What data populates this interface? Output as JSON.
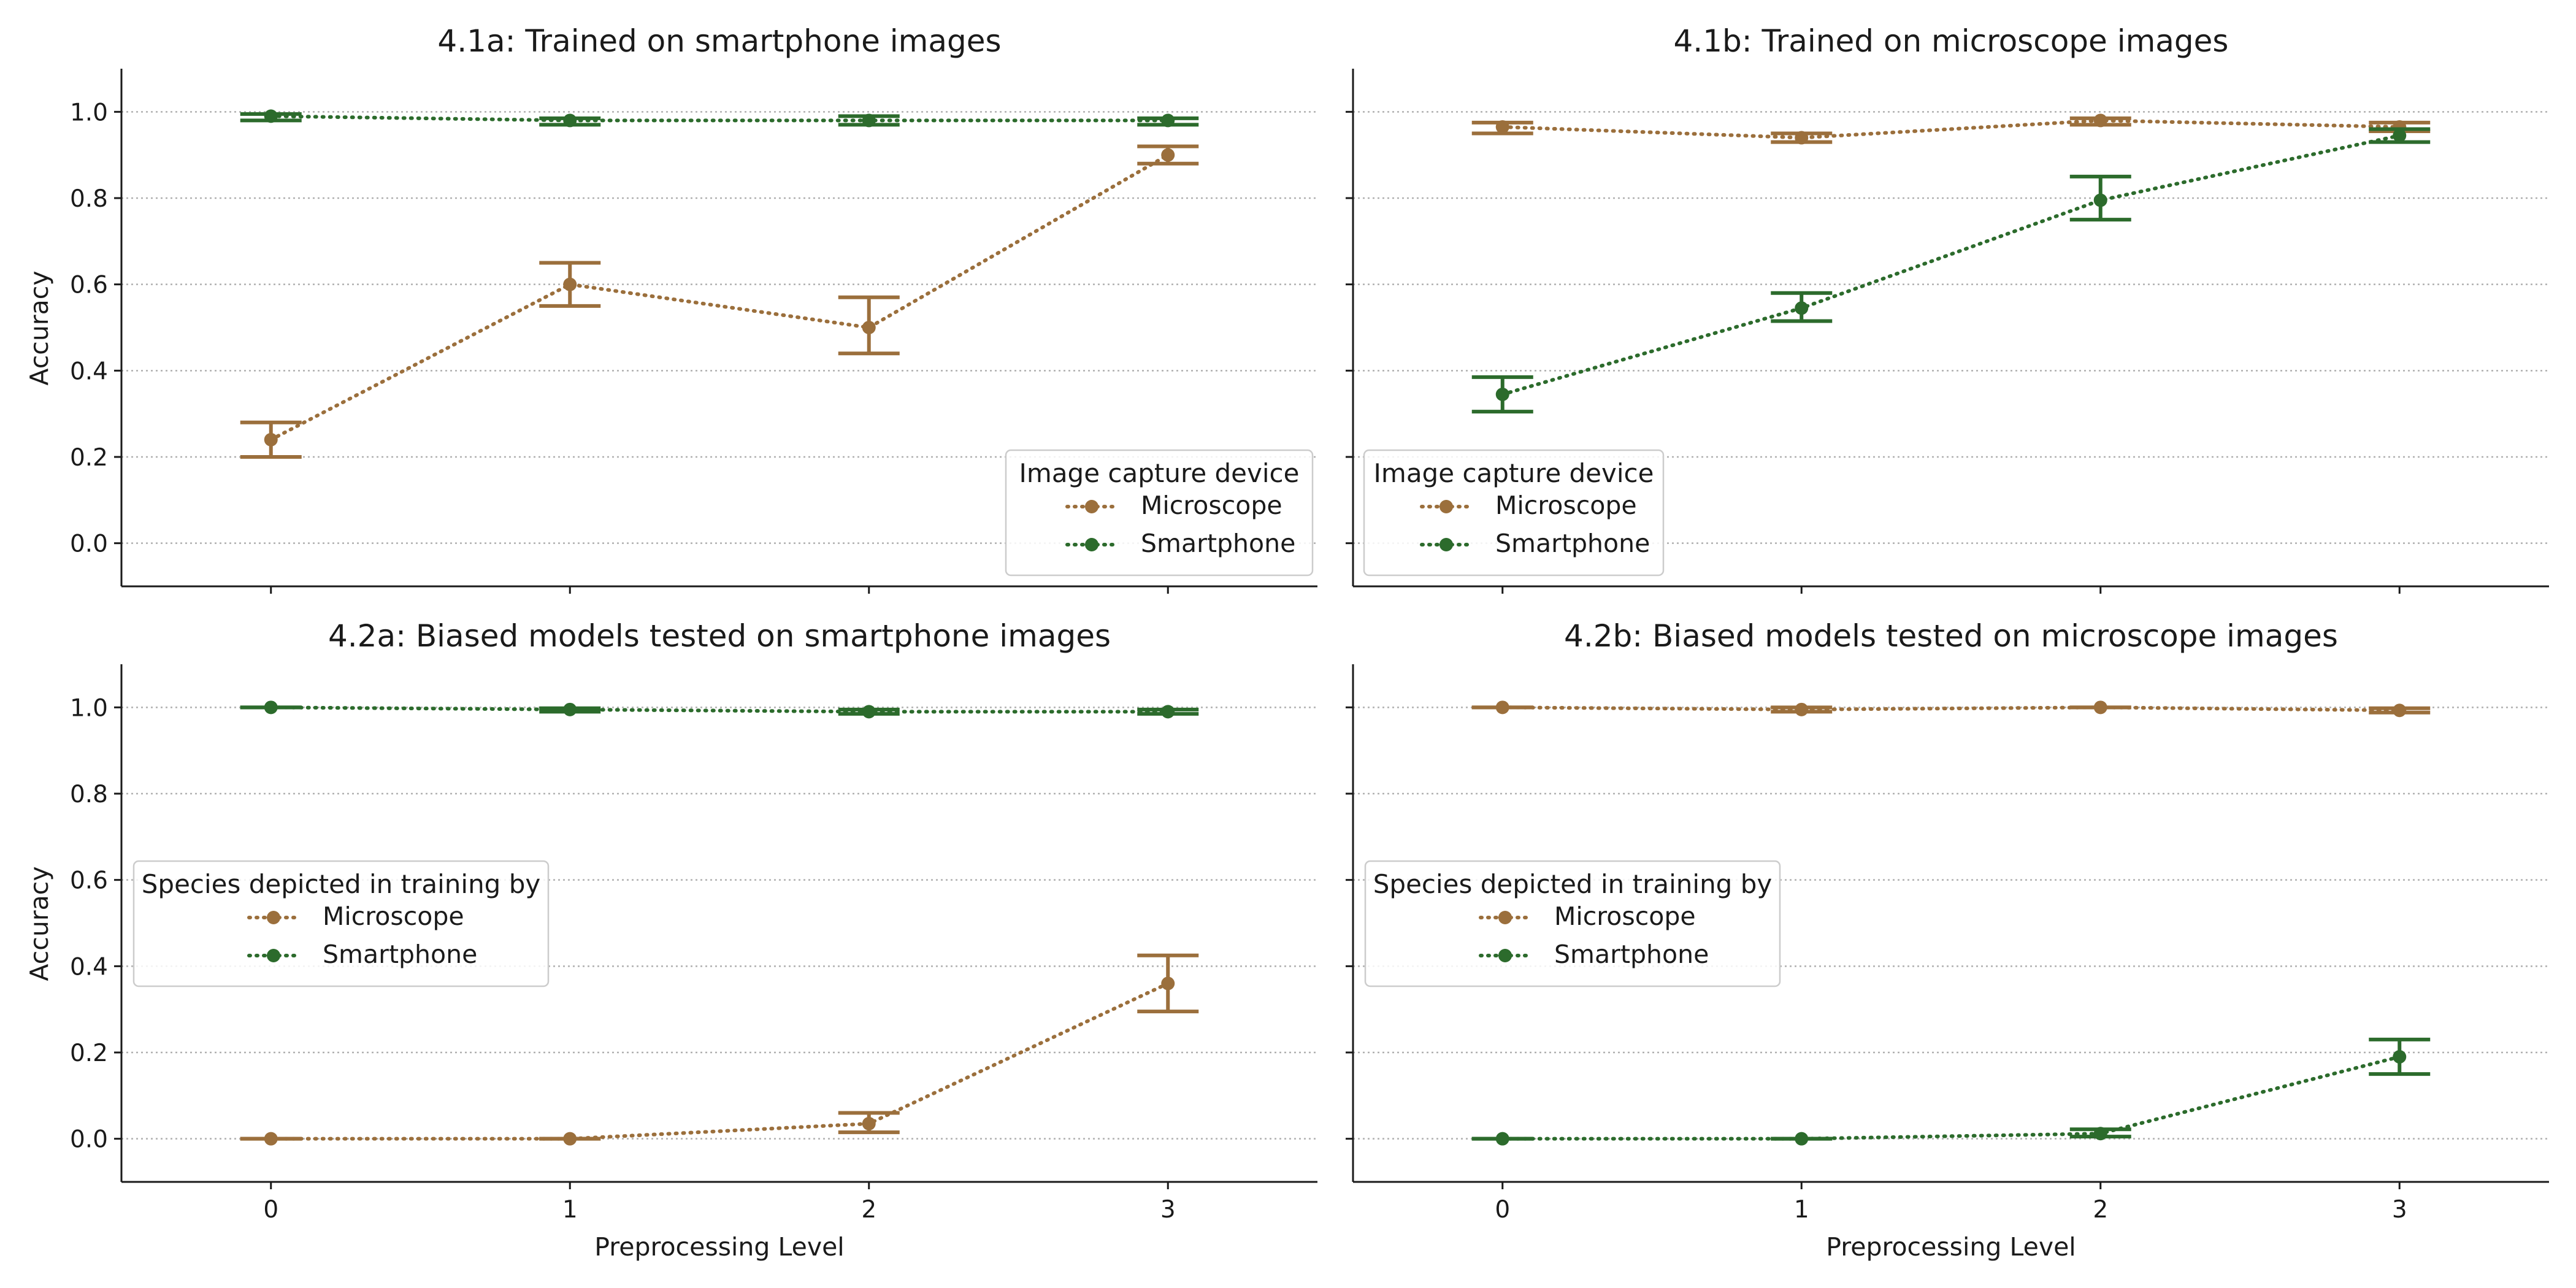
{
  "colors": {
    "microscope": "#9b6f3c",
    "smartphone": "#2c6b2c",
    "grid": "#b0b0b0",
    "axis": "#1a1a1a"
  },
  "chart_data": [
    {
      "type": "line",
      "title": "4.1a: Trained on smartphone images",
      "xlabel": "",
      "ylabel": "Accuracy",
      "x": [
        0,
        1,
        2,
        3
      ],
      "ylim": [
        -0.1,
        1.1
      ],
      "yticks": [
        "0.0",
        "0.2",
        "0.4",
        "0.6",
        "0.8",
        "1.0"
      ],
      "xticks": [
        "0",
        "1",
        "2",
        "3"
      ],
      "grid": "y-dotted",
      "legend": {
        "title": "Image capture device",
        "placement": "lower-right"
      },
      "series": [
        {
          "name": "Microscope",
          "color": "microscope",
          "values": [
            0.24,
            0.6,
            0.5,
            0.9
          ],
          "lower": [
            0.2,
            0.55,
            0.44,
            0.88
          ],
          "upper": [
            0.28,
            0.65,
            0.57,
            0.92
          ]
        },
        {
          "name": "Smartphone",
          "color": "smartphone",
          "values": [
            0.99,
            0.98,
            0.98,
            0.98
          ],
          "lower": [
            0.98,
            0.97,
            0.97,
            0.97
          ],
          "upper": [
            0.995,
            0.985,
            0.99,
            0.985
          ]
        }
      ]
    },
    {
      "type": "line",
      "title": "4.1b: Trained on microscope images",
      "xlabel": "",
      "ylabel": "",
      "x": [
        0,
        1,
        2,
        3
      ],
      "ylim": [
        -0.1,
        1.1
      ],
      "yticks": [
        "",
        "",
        "",
        "",
        "",
        ""
      ],
      "xticks": [
        "0",
        "1",
        "2",
        "3"
      ],
      "grid": "y-dotted",
      "legend": {
        "title": "Image capture device",
        "placement": "lower-left"
      },
      "series": [
        {
          "name": "Microscope",
          "color": "microscope",
          "values": [
            0.965,
            0.94,
            0.98,
            0.965
          ],
          "lower": [
            0.95,
            0.93,
            0.97,
            0.955
          ],
          "upper": [
            0.975,
            0.95,
            0.985,
            0.975
          ]
        },
        {
          "name": "Smartphone",
          "color": "smartphone",
          "values": [
            0.345,
            0.545,
            0.795,
            0.945
          ],
          "lower": [
            0.305,
            0.515,
            0.75,
            0.93
          ],
          "upper": [
            0.385,
            0.58,
            0.85,
            0.96
          ]
        }
      ]
    },
    {
      "type": "line",
      "title": "4.2a: Biased models tested on smartphone images",
      "xlabel": "Preprocessing Level",
      "ylabel": "Accuracy",
      "x": [
        0,
        1,
        2,
        3
      ],
      "ylim": [
        -0.1,
        1.1
      ],
      "yticks": [
        "0.0",
        "0.2",
        "0.4",
        "0.6",
        "0.8",
        "1.0"
      ],
      "xticks": [
        "0",
        "1",
        "2",
        "3"
      ],
      "grid": "y-dotted",
      "legend": {
        "title": "Species depicted in training by",
        "placement": "center-left"
      },
      "series": [
        {
          "name": "Microscope",
          "color": "microscope",
          "values": [
            0.0,
            0.0,
            0.035,
            0.36
          ],
          "lower": [
            0.0,
            0.0,
            0.015,
            0.295
          ],
          "upper": [
            0.0,
            0.0,
            0.06,
            0.425
          ]
        },
        {
          "name": "Smartphone",
          "color": "smartphone",
          "values": [
            1.0,
            0.995,
            0.99,
            0.99
          ],
          "lower": [
            1.0,
            0.99,
            0.985,
            0.985
          ],
          "upper": [
            1.0,
            0.998,
            0.995,
            0.995
          ]
        }
      ]
    },
    {
      "type": "line",
      "title": "4.2b: Biased models tested on microscope images",
      "xlabel": "Preprocessing Level",
      "ylabel": "",
      "x": [
        0,
        1,
        2,
        3
      ],
      "ylim": [
        -0.1,
        1.1
      ],
      "yticks": [
        "",
        "",
        "",
        "",
        "",
        ""
      ],
      "xticks": [
        "0",
        "1",
        "2",
        "3"
      ],
      "grid": "y-dotted",
      "legend": {
        "title": "Species depicted in training by",
        "placement": "center-left"
      },
      "series": [
        {
          "name": "Microscope",
          "color": "microscope",
          "values": [
            1.0,
            0.995,
            1.0,
            0.993
          ],
          "lower": [
            1.0,
            0.99,
            1.0,
            0.988
          ],
          "upper": [
            1.0,
            1.0,
            1.0,
            0.998
          ]
        },
        {
          "name": "Smartphone",
          "color": "smartphone",
          "values": [
            0.0,
            0.0,
            0.012,
            0.19
          ],
          "lower": [
            0.0,
            0.0,
            0.005,
            0.15
          ],
          "upper": [
            0.0,
            0.0,
            0.022,
            0.23
          ]
        }
      ]
    }
  ]
}
